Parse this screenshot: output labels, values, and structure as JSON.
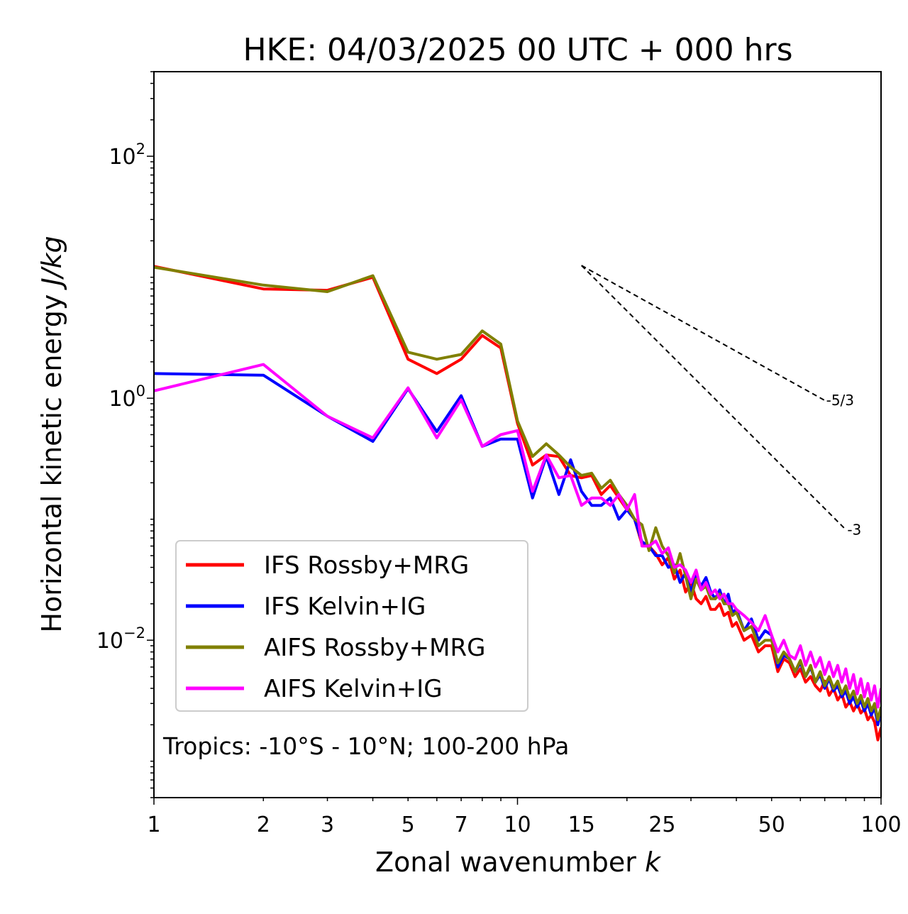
{
  "chart_data": {
    "type": "line",
    "title": "HKE: 04/03/2025 00 UTC + 000 hrs",
    "xlabel": "Zonal wavenumber",
    "xlabel_var": "k",
    "ylabel": "Horizontal kinetic energy",
    "ylabel_units": "J/kg",
    "xscale": "log",
    "yscale": "log",
    "xlim": [
      1,
      100
    ],
    "ylim": [
      0.0005,
      500
    ],
    "xticks": [
      1,
      2,
      3,
      5,
      7,
      10,
      15,
      25,
      50,
      100
    ],
    "xtick_labels": [
      "1",
      "2",
      "3",
      "5",
      "7",
      "10",
      "15",
      "25",
      "50",
      "100"
    ],
    "yticks": [
      0.01,
      1,
      100
    ],
    "ytick_labels": [
      {
        "base": "10",
        "exp": "−2"
      },
      {
        "base": "10",
        "exp": "0"
      },
      {
        "base": "10",
        "exp": "2"
      }
    ],
    "legend_position": "lower-left",
    "annotation": "Tropics: -10°S - 10°N; 100-200 hPa",
    "reference_lines": [
      {
        "label": "-5/3",
        "slope": -1.6667,
        "x": [
          15,
          70
        ],
        "y": [
          12.5,
          0.96
        ]
      },
      {
        "label": "-3",
        "slope": -3,
        "x": [
          15,
          80
        ],
        "y": [
          12.5,
          0.082
        ]
      }
    ],
    "series": [
      {
        "name": "IFS Rossby+MRG",
        "color": "#ff0000",
        "x": [
          1,
          2,
          3,
          4,
          5,
          6,
          7,
          8,
          9,
          10,
          11,
          12,
          13,
          14,
          15,
          16,
          17,
          18,
          19,
          20,
          21,
          22,
          23,
          24,
          25,
          26,
          27,
          28,
          29,
          30,
          31,
          32,
          33,
          34,
          35,
          36,
          37,
          38,
          39,
          40,
          42,
          44,
          46,
          48,
          50,
          52,
          54,
          56,
          58,
          60,
          62,
          64,
          66,
          68,
          70,
          72,
          74,
          76,
          78,
          80,
          82,
          84,
          86,
          88,
          90,
          92,
          94,
          96,
          98,
          100
        ],
        "values": [
          12.3,
          8.0,
          7.8,
          10.0,
          2.1,
          1.6,
          2.1,
          3.3,
          2.6,
          0.62,
          0.28,
          0.34,
          0.33,
          0.23,
          0.22,
          0.23,
          0.16,
          0.19,
          0.15,
          0.12,
          0.1,
          0.062,
          0.06,
          0.052,
          0.042,
          0.048,
          0.032,
          0.038,
          0.025,
          0.03,
          0.022,
          0.02,
          0.023,
          0.018,
          0.018,
          0.02,
          0.016,
          0.017,
          0.013,
          0.014,
          0.01,
          0.011,
          0.008,
          0.009,
          0.009,
          0.0055,
          0.007,
          0.0065,
          0.005,
          0.0058,
          0.0045,
          0.005,
          0.0042,
          0.0038,
          0.0046,
          0.0035,
          0.004,
          0.0032,
          0.0036,
          0.0028,
          0.0031,
          0.0026,
          0.003,
          0.0025,
          0.0027,
          0.0022,
          0.0024,
          0.0021,
          0.0015,
          0.0019
        ]
      },
      {
        "name": "IFS Kelvin+IG",
        "color": "#0000ff",
        "x": [
          1,
          2,
          3,
          4,
          5,
          6,
          7,
          8,
          9,
          10,
          11,
          12,
          13,
          14,
          15,
          16,
          17,
          18,
          19,
          20,
          21,
          22,
          23,
          24,
          25,
          26,
          27,
          28,
          29,
          30,
          31,
          32,
          33,
          34,
          35,
          36,
          37,
          38,
          39,
          40,
          42,
          44,
          46,
          48,
          50,
          52,
          54,
          56,
          58,
          60,
          62,
          64,
          66,
          68,
          70,
          72,
          74,
          76,
          78,
          80,
          82,
          84,
          86,
          88,
          90,
          92,
          94,
          96,
          98,
          100
        ],
        "values": [
          1.6,
          1.55,
          0.71,
          0.44,
          1.2,
          0.53,
          1.05,
          0.4,
          0.46,
          0.46,
          0.15,
          0.33,
          0.16,
          0.31,
          0.17,
          0.13,
          0.13,
          0.15,
          0.1,
          0.12,
          0.1,
          0.065,
          0.06,
          0.05,
          0.05,
          0.04,
          0.042,
          0.03,
          0.036,
          0.025,
          0.034,
          0.028,
          0.033,
          0.025,
          0.022,
          0.026,
          0.02,
          0.024,
          0.017,
          0.018,
          0.012,
          0.015,
          0.01,
          0.012,
          0.011,
          0.006,
          0.0075,
          0.007,
          0.0055,
          0.0065,
          0.005,
          0.006,
          0.0045,
          0.0052,
          0.004,
          0.0048,
          0.0038,
          0.0042,
          0.0034,
          0.0038,
          0.003,
          0.0034,
          0.0028,
          0.0032,
          0.0026,
          0.003,
          0.0024,
          0.0028,
          0.002,
          0.0026
        ]
      },
      {
        "name": "AIFS Rossby+MRG",
        "color": "#808000",
        "x": [
          1,
          2,
          3,
          4,
          5,
          6,
          7,
          8,
          9,
          10,
          11,
          12,
          13,
          14,
          15,
          16,
          17,
          18,
          19,
          20,
          21,
          22,
          23,
          24,
          25,
          26,
          27,
          28,
          29,
          30,
          31,
          32,
          33,
          34,
          35,
          36,
          37,
          38,
          39,
          40,
          42,
          44,
          46,
          48,
          50,
          52,
          54,
          56,
          58,
          60,
          62,
          64,
          66,
          68,
          70,
          72,
          74,
          76,
          78,
          80,
          82,
          84,
          86,
          88,
          90,
          92,
          94,
          96,
          98,
          100
        ],
        "values": [
          12.1,
          8.6,
          7.6,
          10.3,
          2.4,
          2.1,
          2.3,
          3.6,
          2.8,
          0.65,
          0.33,
          0.42,
          0.34,
          0.27,
          0.23,
          0.24,
          0.18,
          0.21,
          0.16,
          0.13,
          0.1,
          0.09,
          0.055,
          0.085,
          0.06,
          0.05,
          0.036,
          0.052,
          0.034,
          0.022,
          0.032,
          0.026,
          0.028,
          0.022,
          0.022,
          0.024,
          0.02,
          0.02,
          0.016,
          0.017,
          0.012,
          0.013,
          0.009,
          0.01,
          0.01,
          0.0065,
          0.008,
          0.007,
          0.0055,
          0.0068,
          0.005,
          0.0062,
          0.0045,
          0.0055,
          0.0042,
          0.005,
          0.004,
          0.0046,
          0.0036,
          0.0042,
          0.0033,
          0.0038,
          0.003,
          0.0035,
          0.0028,
          0.0033,
          0.0026,
          0.003,
          0.0022,
          0.0028
        ]
      },
      {
        "name": "AIFS Kelvin+IG",
        "color": "#ff00ff",
        "x": [
          1,
          2,
          3,
          4,
          5,
          6,
          7,
          8,
          9,
          10,
          11,
          12,
          13,
          14,
          15,
          16,
          17,
          18,
          19,
          20,
          21,
          22,
          23,
          24,
          25,
          26,
          27,
          28,
          29,
          30,
          31,
          32,
          33,
          34,
          35,
          36,
          37,
          38,
          39,
          40,
          42,
          44,
          46,
          48,
          50,
          52,
          54,
          56,
          58,
          60,
          62,
          64,
          66,
          68,
          70,
          72,
          74,
          76,
          78,
          80,
          82,
          84,
          86,
          88,
          90,
          92,
          94,
          96,
          98,
          100
        ],
        "values": [
          1.15,
          1.9,
          0.71,
          0.47,
          1.22,
          0.47,
          0.97,
          0.4,
          0.5,
          0.54,
          0.17,
          0.34,
          0.22,
          0.23,
          0.13,
          0.15,
          0.15,
          0.13,
          0.16,
          0.12,
          0.16,
          0.06,
          0.06,
          0.066,
          0.052,
          0.058,
          0.04,
          0.042,
          0.038,
          0.03,
          0.038,
          0.026,
          0.03,
          0.024,
          0.026,
          0.022,
          0.024,
          0.02,
          0.02,
          0.018,
          0.016,
          0.014,
          0.012,
          0.016,
          0.011,
          0.008,
          0.01,
          0.0075,
          0.007,
          0.009,
          0.0062,
          0.008,
          0.006,
          0.0072,
          0.0052,
          0.0066,
          0.005,
          0.0062,
          0.0045,
          0.0058,
          0.004,
          0.0052,
          0.0036,
          0.0048,
          0.0034,
          0.0044,
          0.0032,
          0.0042,
          0.0028,
          0.004
        ]
      }
    ]
  }
}
